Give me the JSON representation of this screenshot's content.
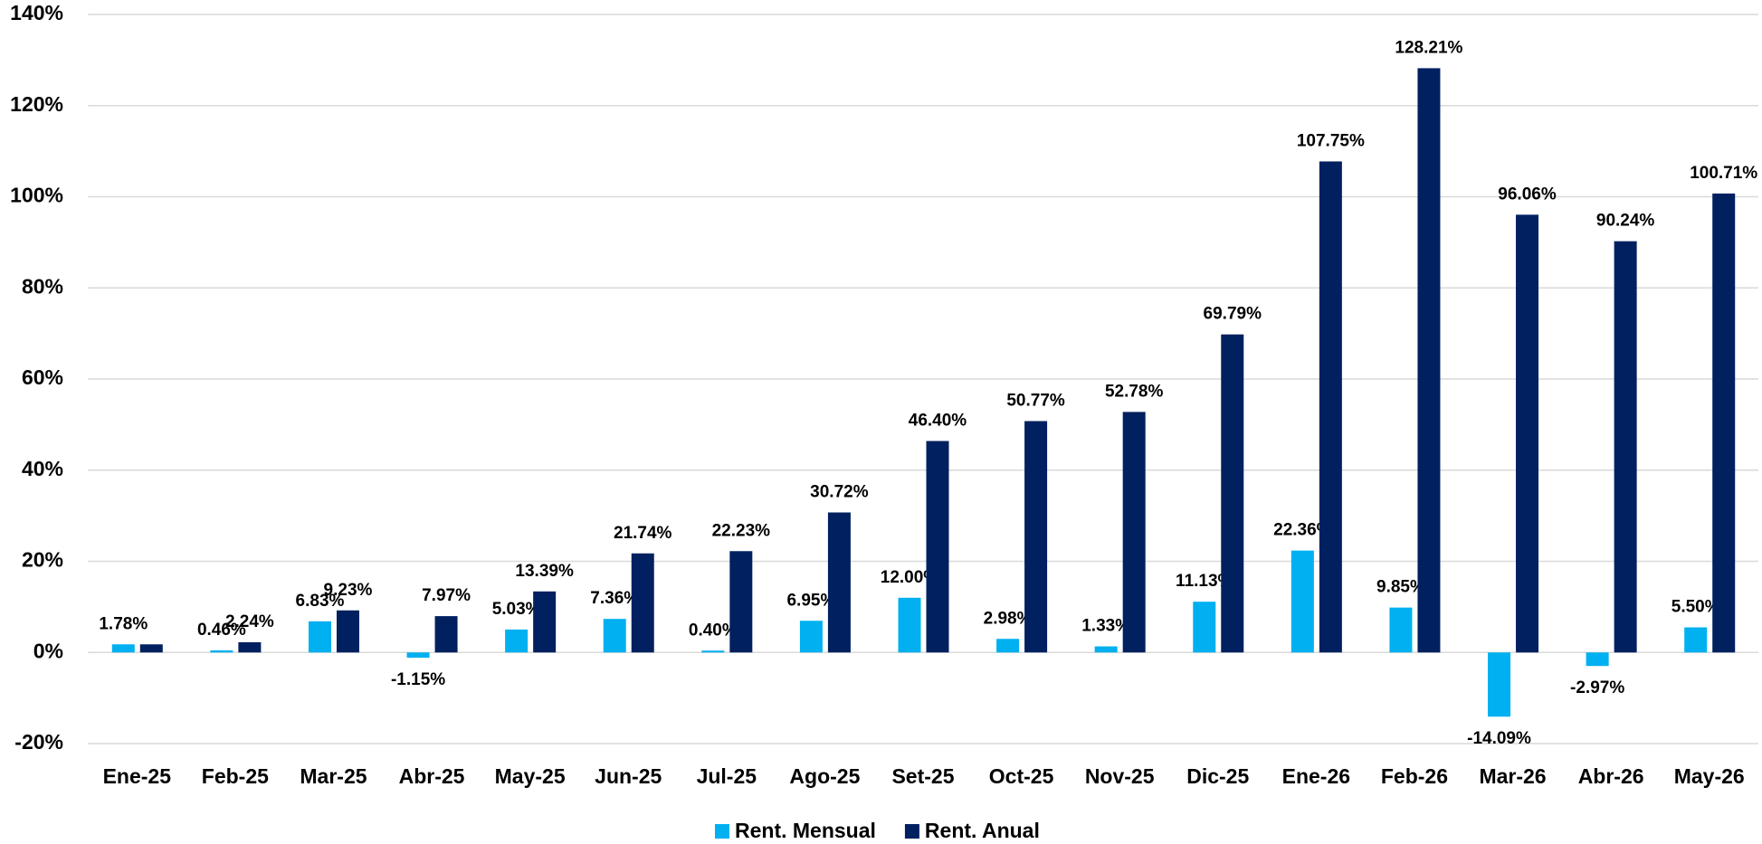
{
  "chart_data": {
    "type": "bar",
    "categories": [
      "Ene-25",
      "Feb-25",
      "Mar-25",
      "Abr-25",
      "May-25",
      "Jun-25",
      "Jul-25",
      "Ago-25",
      "Set-25",
      "Oct-25",
      "Nov-25",
      "Dic-25",
      "Ene-26",
      "Feb-26",
      "Mar-26",
      "Abr-26",
      "May-26"
    ],
    "series": [
      {
        "name": "Rent. Mensual",
        "color": "#00b0f0",
        "values": [
          1.78,
          0.46,
          6.83,
          -1.15,
          5.03,
          7.36,
          0.4,
          6.95,
          12.0,
          2.98,
          1.33,
          11.13,
          22.36,
          9.85,
          -14.09,
          -2.97,
          5.5
        ],
        "value_labels": [
          "1.78%",
          "0.46%",
          "6.83%",
          "-1.15%",
          "5.03%",
          "7.36%",
          "0.40%",
          "6.95%",
          "12.00%",
          "2.98%",
          "1.33%",
          "11.13%",
          "22.36%",
          "9.85%",
          "-14.09%",
          "-2.97%",
          "5.50%"
        ]
      },
      {
        "name": "Rent. Anual",
        "color": "#002060",
        "values": [
          1.78,
          2.24,
          9.23,
          7.97,
          13.39,
          21.74,
          22.23,
          30.72,
          46.4,
          50.77,
          52.78,
          69.79,
          107.75,
          128.21,
          96.06,
          90.24,
          100.71
        ],
        "value_labels": [
          null,
          "2.24%",
          "9.23%",
          "7.97%",
          "13.39%",
          "21.74%",
          "22.23%",
          "30.72%",
          "46.40%",
          "50.77%",
          "52.78%",
          "69.79%",
          "107.75%",
          "128.21%",
          "96.06%",
          "90.24%",
          "100.71%"
        ]
      }
    ],
    "ylim": [
      -20,
      140
    ],
    "yticks": [
      {
        "value": -20,
        "label": "-20%"
      },
      {
        "value": 0,
        "label": "0%"
      },
      {
        "value": 20,
        "label": "20%"
      },
      {
        "value": 40,
        "label": "40%"
      },
      {
        "value": 60,
        "label": "60%"
      },
      {
        "value": 80,
        "label": "80%"
      },
      {
        "value": 100,
        "label": "100%"
      },
      {
        "value": 120,
        "label": "120%"
      },
      {
        "value": 140,
        "label": "140%"
      }
    ],
    "grid": true,
    "legend": "bottom"
  }
}
